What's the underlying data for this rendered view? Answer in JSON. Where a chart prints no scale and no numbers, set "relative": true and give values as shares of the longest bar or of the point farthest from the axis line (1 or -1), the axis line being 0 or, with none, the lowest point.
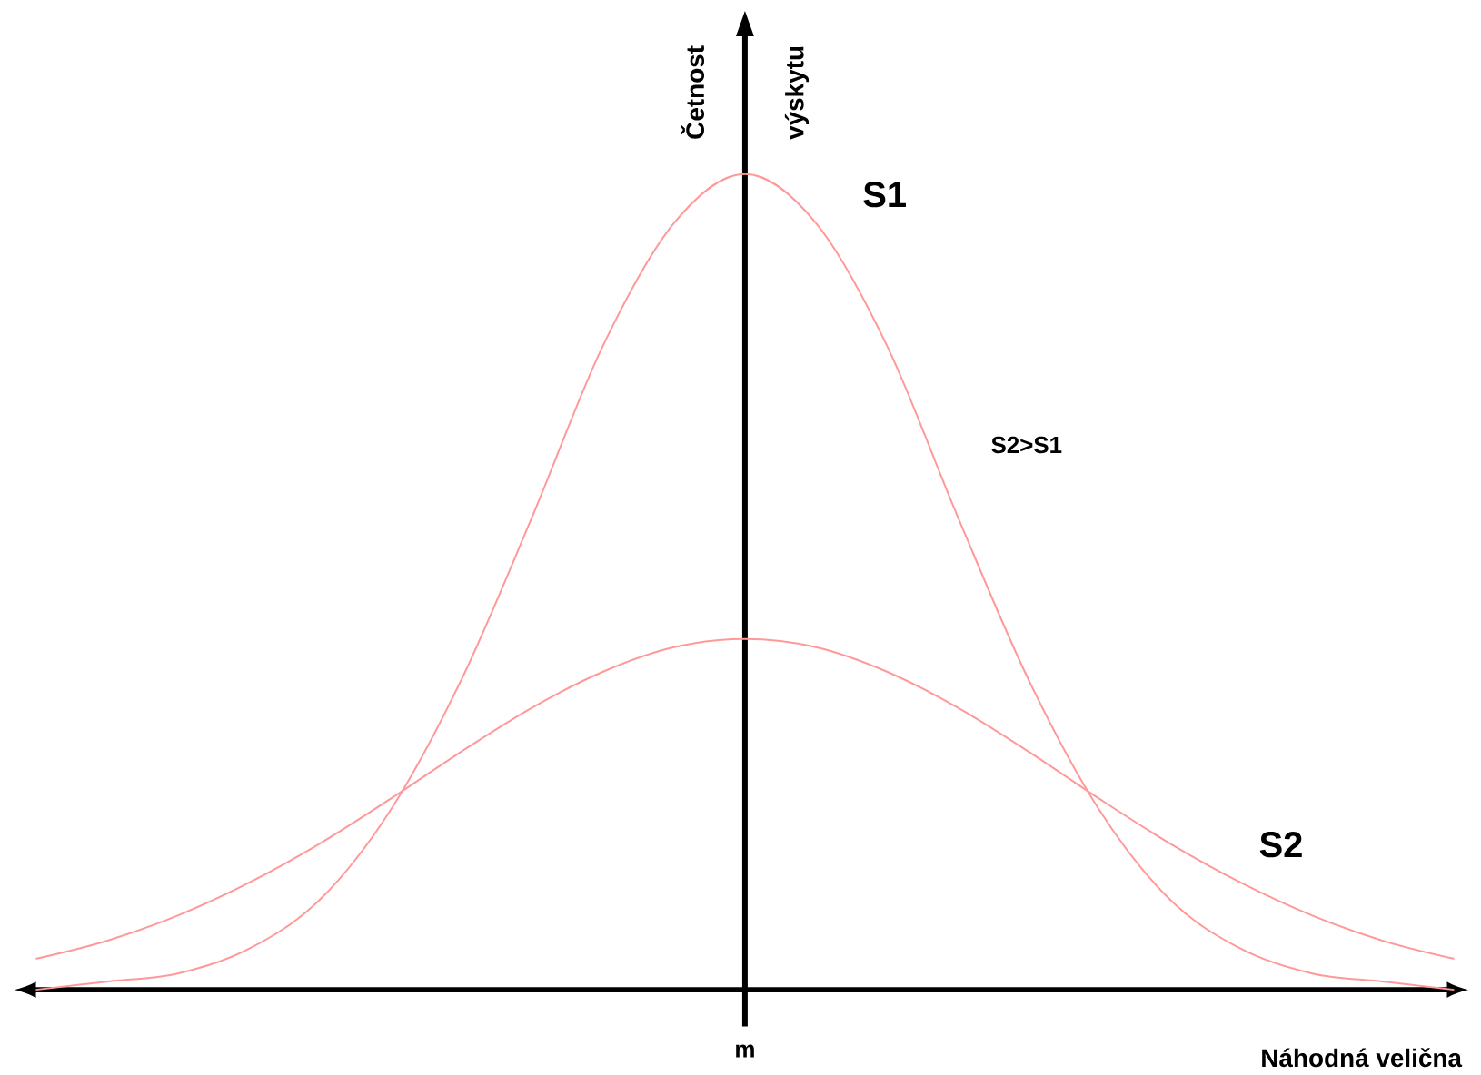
{
  "chart_data": {
    "type": "line",
    "relative": true,
    "xlabel": "Náhodná velična",
    "ylabel": "Četnost výskytu",
    "categories": [
      null,
      null,
      null,
      null,
      null,
      null,
      null,
      null,
      null,
      null,
      null,
      null,
      null,
      null,
      null,
      null,
      null,
      null,
      null,
      null,
      null
    ],
    "series": [
      {
        "name": "S1",
        "color": "#ff9999",
        "values": [
          0.0,
          0.01,
          0.02,
          0.05,
          0.11,
          0.22,
          0.38,
          0.58,
          0.79,
          0.94,
          1,
          0.94,
          0.79,
          0.58,
          0.38,
          0.22,
          0.11,
          0.05,
          0.02,
          0.01,
          0.0
        ]
      },
      {
        "name": "S2",
        "color": "#ff9999",
        "values": [
          0.038,
          0.06,
          0.091,
          0.131,
          0.179,
          0.234,
          0.292,
          0.346,
          0.39,
          0.42,
          0.43,
          0.42,
          0.39,
          0.346,
          0.292,
          0.234,
          0.179,
          0.131,
          0.091,
          0.06,
          0.038
        ]
      }
    ],
    "annotations": [
      "S2>S1",
      "m"
    ]
  }
}
